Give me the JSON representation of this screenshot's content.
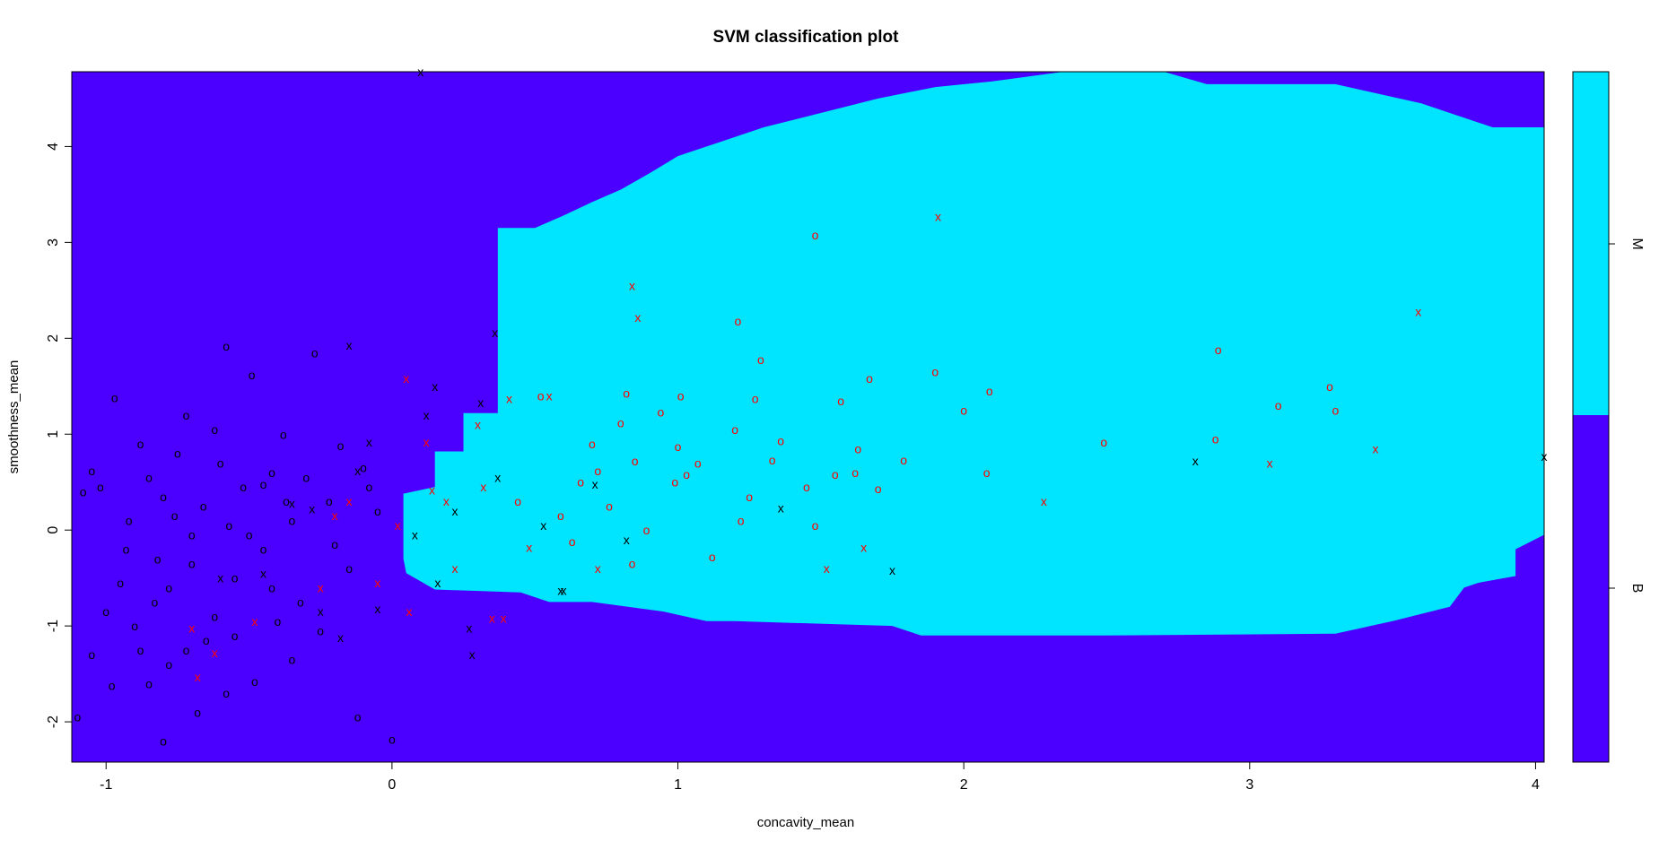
{
  "chart_data": {
    "type": "scatter",
    "title": "SVM classification plot",
    "xlabel": "concavity_mean",
    "ylabel": "smoothness_mean",
    "xlim": [
      -1.12,
      4.03
    ],
    "ylim": [
      -2.42,
      4.78
    ],
    "x_ticks": [
      "-1",
      "0",
      "1",
      "2",
      "3",
      "4"
    ],
    "y_ticks": [
      "-2",
      "-1",
      "0",
      "1",
      "2",
      "3",
      "4"
    ],
    "grid": false,
    "classes": [
      {
        "name": "B",
        "color": "#4b00ff"
      },
      {
        "name": "M",
        "color": "#00e5ff"
      }
    ],
    "legend": {
      "position": "right",
      "type": "color-bar",
      "labels": [
        "M",
        "B"
      ]
    },
    "markers": {
      "data_point": "o",
      "support_vector": "x"
    },
    "point_colors": {
      "B": "#000000",
      "M": "#ff0000"
    },
    "decision_region_M": [
      [
        0.04,
        0.38
      ],
      [
        0.15,
        0.45
      ],
      [
        0.15,
        0.82
      ],
      [
        0.25,
        0.82
      ],
      [
        0.25,
        1.22
      ],
      [
        0.37,
        1.22
      ],
      [
        0.37,
        3.15
      ],
      [
        0.5,
        3.15
      ],
      [
        0.6,
        3.28
      ],
      [
        0.7,
        3.42
      ],
      [
        0.8,
        3.55
      ],
      [
        0.9,
        3.72
      ],
      [
        1.0,
        3.9
      ],
      [
        1.15,
        4.05
      ],
      [
        1.3,
        4.2
      ],
      [
        1.5,
        4.35
      ],
      [
        1.7,
        4.5
      ],
      [
        1.9,
        4.62
      ],
      [
        2.1,
        4.68
      ],
      [
        2.35,
        4.78
      ],
      [
        2.7,
        4.78
      ],
      [
        2.85,
        4.65
      ],
      [
        3.3,
        4.65
      ],
      [
        3.6,
        4.45
      ],
      [
        3.85,
        4.2
      ],
      [
        4.03,
        4.2
      ],
      [
        4.03,
        -0.05
      ],
      [
        3.93,
        -0.2
      ],
      [
        3.93,
        -0.48
      ],
      [
        3.8,
        -0.55
      ],
      [
        3.75,
        -0.6
      ],
      [
        3.7,
        -0.8
      ],
      [
        3.5,
        -0.95
      ],
      [
        3.3,
        -1.08
      ],
      [
        2.5,
        -1.1
      ],
      [
        1.85,
        -1.1
      ],
      [
        1.75,
        -1.0
      ],
      [
        1.2,
        -0.95
      ],
      [
        1.1,
        -0.95
      ],
      [
        0.95,
        -0.85
      ],
      [
        0.7,
        -0.75
      ],
      [
        0.55,
        -0.75
      ],
      [
        0.45,
        -0.65
      ],
      [
        0.15,
        -0.62
      ],
      [
        0.05,
        -0.45
      ],
      [
        0.04,
        -0.3
      ]
    ],
    "points": [
      {
        "x": -1.08,
        "y": 0.4,
        "class": "B",
        "sv": false
      },
      {
        "x": -1.05,
        "y": 0.62,
        "class": "B",
        "sv": false
      },
      {
        "x": -1.02,
        "y": 0.45,
        "class": "B",
        "sv": false
      },
      {
        "x": -0.97,
        "y": 1.38,
        "class": "B",
        "sv": false
      },
      {
        "x": -0.92,
        "y": 0.1,
        "class": "B",
        "sv": false
      },
      {
        "x": -0.88,
        "y": 0.9,
        "class": "B",
        "sv": false
      },
      {
        "x": -0.85,
        "y": 0.55,
        "class": "B",
        "sv": false
      },
      {
        "x": -0.82,
        "y": -0.3,
        "class": "B",
        "sv": false
      },
      {
        "x": -0.8,
        "y": 0.35,
        "class": "B",
        "sv": false
      },
      {
        "x": -0.78,
        "y": -0.6,
        "class": "B",
        "sv": false
      },
      {
        "x": -0.75,
        "y": 0.8,
        "class": "B",
        "sv": false
      },
      {
        "x": -0.72,
        "y": 1.2,
        "class": "B",
        "sv": false
      },
      {
        "x": -0.7,
        "y": -0.05,
        "class": "B",
        "sv": false
      },
      {
        "x": -0.66,
        "y": 0.25,
        "class": "B",
        "sv": false
      },
      {
        "x": -0.62,
        "y": 1.05,
        "class": "B",
        "sv": false
      },
      {
        "x": -0.58,
        "y": 1.92,
        "class": "B",
        "sv": false
      },
      {
        "x": -0.55,
        "y": -0.5,
        "class": "B",
        "sv": false
      },
      {
        "x": -0.52,
        "y": 0.45,
        "class": "B",
        "sv": false
      },
      {
        "x": -0.49,
        "y": 1.62,
        "class": "B",
        "sv": false
      },
      {
        "x": -0.45,
        "y": -0.2,
        "class": "B",
        "sv": false
      },
      {
        "x": -0.42,
        "y": 0.6,
        "class": "B",
        "sv": false
      },
      {
        "x": -0.38,
        "y": 1.0,
        "class": "B",
        "sv": false
      },
      {
        "x": -0.35,
        "y": 0.1,
        "class": "B",
        "sv": false
      },
      {
        "x": -0.3,
        "y": 0.55,
        "class": "B",
        "sv": false
      },
      {
        "x": -0.27,
        "y": 1.85,
        "class": "B",
        "sv": false
      },
      {
        "x": -0.22,
        "y": 0.3,
        "class": "B",
        "sv": false
      },
      {
        "x": -0.18,
        "y": 0.88,
        "class": "B",
        "sv": false
      },
      {
        "x": -0.15,
        "y": -0.4,
        "class": "B",
        "sv": false
      },
      {
        "x": -0.1,
        "y": 0.65,
        "class": "B",
        "sv": false
      },
      {
        "x": -0.05,
        "y": 0.2,
        "class": "B",
        "sv": false
      },
      {
        "x": -0.9,
        "y": -1.0,
        "class": "B",
        "sv": false
      },
      {
        "x": -0.85,
        "y": -1.6,
        "class": "B",
        "sv": false
      },
      {
        "x": -0.8,
        "y": -2.2,
        "class": "B",
        "sv": false
      },
      {
        "x": -0.72,
        "y": -1.25,
        "class": "B",
        "sv": false
      },
      {
        "x": -0.68,
        "y": -1.9,
        "class": "B",
        "sv": false
      },
      {
        "x": -0.62,
        "y": -0.9,
        "class": "B",
        "sv": false
      },
      {
        "x": -0.58,
        "y": -1.7,
        "class": "B",
        "sv": false
      },
      {
        "x": -0.55,
        "y": -1.1,
        "class": "B",
        "sv": false
      },
      {
        "x": -0.48,
        "y": -1.58,
        "class": "B",
        "sv": false
      },
      {
        "x": -0.4,
        "y": -0.95,
        "class": "B",
        "sv": false
      },
      {
        "x": -0.35,
        "y": -1.35,
        "class": "B",
        "sv": false
      },
      {
        "x": -1.0,
        "y": -0.85,
        "class": "B",
        "sv": false
      },
      {
        "x": -0.95,
        "y": -0.55,
        "class": "B",
        "sv": false
      },
      {
        "x": -0.88,
        "y": -1.25,
        "class": "B",
        "sv": false
      },
      {
        "x": -0.76,
        "y": 0.15,
        "class": "B",
        "sv": false
      },
      {
        "x": -0.6,
        "y": 0.7,
        "class": "B",
        "sv": false
      },
      {
        "x": -0.5,
        "y": -0.05,
        "class": "B",
        "sv": false
      },
      {
        "x": -0.45,
        "y": 0.48,
        "class": "B",
        "sv": false
      },
      {
        "x": -0.32,
        "y": -0.75,
        "class": "B",
        "sv": false
      },
      {
        "x": -0.25,
        "y": -1.05,
        "class": "B",
        "sv": false
      },
      {
        "x": -0.12,
        "y": -1.95,
        "class": "B",
        "sv": false
      },
      {
        "x": 0.0,
        "y": -2.18,
        "class": "B",
        "sv": false
      },
      {
        "x": -1.1,
        "y": -1.95,
        "class": "B",
        "sv": false
      },
      {
        "x": -1.05,
        "y": -1.3,
        "class": "B",
        "sv": false
      },
      {
        "x": -0.98,
        "y": -1.62,
        "class": "B",
        "sv": false
      },
      {
        "x": -0.93,
        "y": -0.2,
        "class": "B",
        "sv": false
      },
      {
        "x": -0.83,
        "y": -0.75,
        "class": "B",
        "sv": false
      },
      {
        "x": -0.78,
        "y": -1.4,
        "class": "B",
        "sv": false
      },
      {
        "x": -0.7,
        "y": -0.35,
        "class": "B",
        "sv": false
      },
      {
        "x": -0.65,
        "y": -1.15,
        "class": "B",
        "sv": false
      },
      {
        "x": -0.57,
        "y": 0.05,
        "class": "B",
        "sv": false
      },
      {
        "x": -0.42,
        "y": -0.6,
        "class": "B",
        "sv": false
      },
      {
        "x": -0.37,
        "y": 0.3,
        "class": "B",
        "sv": false
      },
      {
        "x": -0.2,
        "y": -0.15,
        "class": "B",
        "sv": false
      },
      {
        "x": -0.08,
        "y": 0.45,
        "class": "B",
        "sv": false
      },
      {
        "x": -0.15,
        "y": 1.93,
        "class": "B",
        "sv": true
      },
      {
        "x": -0.08,
        "y": 0.92,
        "class": "B",
        "sv": true
      },
      {
        "x": 0.1,
        "y": 4.78,
        "class": "B",
        "sv": true
      },
      {
        "x": 0.15,
        "y": 1.5,
        "class": "B",
        "sv": true
      },
      {
        "x": 0.12,
        "y": 1.2,
        "class": "B",
        "sv": true
      },
      {
        "x": -0.12,
        "y": 0.62,
        "class": "B",
        "sv": true
      },
      {
        "x": -0.28,
        "y": 0.22,
        "class": "B",
        "sv": true
      },
      {
        "x": -0.35,
        "y": 0.28,
        "class": "B",
        "sv": true
      },
      {
        "x": -0.45,
        "y": -0.45,
        "class": "B",
        "sv": true
      },
      {
        "x": -0.6,
        "y": -0.5,
        "class": "B",
        "sv": true
      },
      {
        "x": -0.25,
        "y": -0.85,
        "class": "B",
        "sv": true
      },
      {
        "x": -0.18,
        "y": -1.12,
        "class": "B",
        "sv": true
      },
      {
        "x": -0.05,
        "y": -0.82,
        "class": "B",
        "sv": true
      },
      {
        "x": 0.08,
        "y": -0.05,
        "class": "B",
        "sv": true
      },
      {
        "x": 0.16,
        "y": -0.55,
        "class": "B",
        "sv": true
      },
      {
        "x": 0.22,
        "y": 0.2,
        "class": "B",
        "sv": true
      },
      {
        "x": 0.27,
        "y": -1.02,
        "class": "B",
        "sv": true
      },
      {
        "x": 0.28,
        "y": -1.3,
        "class": "B",
        "sv": true
      },
      {
        "x": 0.31,
        "y": 1.33,
        "class": "B",
        "sv": true
      },
      {
        "x": 0.36,
        "y": 2.06,
        "class": "B",
        "sv": true
      },
      {
        "x": 0.37,
        "y": 0.55,
        "class": "B",
        "sv": true
      },
      {
        "x": 0.53,
        "y": 0.05,
        "class": "B",
        "sv": true
      },
      {
        "x": 0.59,
        "y": -0.63,
        "class": "B",
        "sv": true
      },
      {
        "x": 0.6,
        "y": -0.63,
        "class": "B",
        "sv": true
      },
      {
        "x": 0.71,
        "y": 0.48,
        "class": "B",
        "sv": true
      },
      {
        "x": 0.82,
        "y": -0.1,
        "class": "B",
        "sv": true
      },
      {
        "x": 1.36,
        "y": 0.23,
        "class": "B",
        "sv": true
      },
      {
        "x": 1.75,
        "y": -0.42,
        "class": "B",
        "sv": true
      },
      {
        "x": 2.81,
        "y": 0.72,
        "class": "B",
        "sv": true
      },
      {
        "x": 4.03,
        "y": 0.77,
        "class": "B",
        "sv": true
      },
      {
        "x": 0.52,
        "y": 1.4,
        "class": "M",
        "sv": false
      },
      {
        "x": 0.59,
        "y": 0.15,
        "class": "M",
        "sv": false
      },
      {
        "x": 0.66,
        "y": 0.5,
        "class": "M",
        "sv": false
      },
      {
        "x": 0.72,
        "y": 0.62,
        "class": "M",
        "sv": false
      },
      {
        "x": 0.76,
        "y": 0.25,
        "class": "M",
        "sv": false
      },
      {
        "x": 0.8,
        "y": 1.12,
        "class": "M",
        "sv": false
      },
      {
        "x": 0.82,
        "y": 1.43,
        "class": "M",
        "sv": false
      },
      {
        "x": 0.85,
        "y": 0.72,
        "class": "M",
        "sv": false
      },
      {
        "x": 0.89,
        "y": 0.0,
        "class": "M",
        "sv": false
      },
      {
        "x": 0.94,
        "y": 1.23,
        "class": "M",
        "sv": false
      },
      {
        "x": 0.99,
        "y": 0.5,
        "class": "M",
        "sv": false
      },
      {
        "x": 1.0,
        "y": 0.87,
        "class": "M",
        "sv": false
      },
      {
        "x": 1.03,
        "y": 0.58,
        "class": "M",
        "sv": false
      },
      {
        "x": 1.07,
        "y": 0.7,
        "class": "M",
        "sv": false
      },
      {
        "x": 1.12,
        "y": -0.28,
        "class": "M",
        "sv": false
      },
      {
        "x": 1.21,
        "y": 2.18,
        "class": "M",
        "sv": false
      },
      {
        "x": 1.22,
        "y": 0.1,
        "class": "M",
        "sv": false
      },
      {
        "x": 1.27,
        "y": 1.37,
        "class": "M",
        "sv": false
      },
      {
        "x": 1.29,
        "y": 1.78,
        "class": "M",
        "sv": false
      },
      {
        "x": 1.33,
        "y": 0.73,
        "class": "M",
        "sv": false
      },
      {
        "x": 1.36,
        "y": 0.93,
        "class": "M",
        "sv": false
      },
      {
        "x": 1.45,
        "y": 0.45,
        "class": "M",
        "sv": false
      },
      {
        "x": 1.48,
        "y": 3.08,
        "class": "M",
        "sv": false
      },
      {
        "x": 1.55,
        "y": 0.58,
        "class": "M",
        "sv": false
      },
      {
        "x": 1.57,
        "y": 1.35,
        "class": "M",
        "sv": false
      },
      {
        "x": 1.62,
        "y": 0.6,
        "class": "M",
        "sv": false
      },
      {
        "x": 1.67,
        "y": 1.58,
        "class": "M",
        "sv": false
      },
      {
        "x": 1.7,
        "y": 0.43,
        "class": "M",
        "sv": false
      },
      {
        "x": 1.79,
        "y": 0.73,
        "class": "M",
        "sv": false
      },
      {
        "x": 1.9,
        "y": 1.65,
        "class": "M",
        "sv": false
      },
      {
        "x": 2.0,
        "y": 1.25,
        "class": "M",
        "sv": false
      },
      {
        "x": 2.09,
        "y": 1.45,
        "class": "M",
        "sv": false
      },
      {
        "x": 2.08,
        "y": 0.6,
        "class": "M",
        "sv": false
      },
      {
        "x": 2.49,
        "y": 0.92,
        "class": "M",
        "sv": false
      },
      {
        "x": 2.89,
        "y": 1.88,
        "class": "M",
        "sv": false
      },
      {
        "x": 2.88,
        "y": 0.95,
        "class": "M",
        "sv": false
      },
      {
        "x": 3.1,
        "y": 1.3,
        "class": "M",
        "sv": false
      },
      {
        "x": 3.28,
        "y": 1.5,
        "class": "M",
        "sv": false
      },
      {
        "x": 3.3,
        "y": 1.25,
        "class": "M",
        "sv": false
      },
      {
        "x": 0.44,
        "y": 0.3,
        "class": "M",
        "sv": false
      },
      {
        "x": 0.63,
        "y": -0.12,
        "class": "M",
        "sv": false
      },
      {
        "x": 0.7,
        "y": 0.9,
        "class": "M",
        "sv": false
      },
      {
        "x": 0.84,
        "y": -0.35,
        "class": "M",
        "sv": false
      },
      {
        "x": 1.01,
        "y": 1.4,
        "class": "M",
        "sv": false
      },
      {
        "x": 1.2,
        "y": 1.05,
        "class": "M",
        "sv": false
      },
      {
        "x": 1.25,
        "y": 0.35,
        "class": "M",
        "sv": false
      },
      {
        "x": 1.48,
        "y": 0.05,
        "class": "M",
        "sv": false
      },
      {
        "x": 1.63,
        "y": 0.85,
        "class": "M",
        "sv": false
      },
      {
        "x": 0.05,
        "y": 1.58,
        "class": "M",
        "sv": true
      },
      {
        "x": 0.12,
        "y": 0.92,
        "class": "M",
        "sv": true
      },
      {
        "x": -0.15,
        "y": 0.3,
        "class": "M",
        "sv": true
      },
      {
        "x": -0.2,
        "y": 0.15,
        "class": "M",
        "sv": true
      },
      {
        "x": -0.25,
        "y": -0.6,
        "class": "M",
        "sv": true
      },
      {
        "x": -0.05,
        "y": -0.55,
        "class": "M",
        "sv": true
      },
      {
        "x": -0.48,
        "y": -0.95,
        "class": "M",
        "sv": true
      },
      {
        "x": -0.7,
        "y": -1.02,
        "class": "M",
        "sv": true
      },
      {
        "x": -0.62,
        "y": -1.28,
        "class": "M",
        "sv": true
      },
      {
        "x": -0.68,
        "y": -1.53,
        "class": "M",
        "sv": true
      },
      {
        "x": 0.02,
        "y": 0.05,
        "class": "M",
        "sv": true
      },
      {
        "x": 0.06,
        "y": -0.85,
        "class": "M",
        "sv": true
      },
      {
        "x": 0.14,
        "y": 0.42,
        "class": "M",
        "sv": true
      },
      {
        "x": 0.19,
        "y": 0.3,
        "class": "M",
        "sv": true
      },
      {
        "x": 0.22,
        "y": -0.4,
        "class": "M",
        "sv": true
      },
      {
        "x": 0.3,
        "y": 1.1,
        "class": "M",
        "sv": true
      },
      {
        "x": 0.32,
        "y": 0.45,
        "class": "M",
        "sv": true
      },
      {
        "x": 0.35,
        "y": -0.92,
        "class": "M",
        "sv": true
      },
      {
        "x": 0.39,
        "y": -0.92,
        "class": "M",
        "sv": true
      },
      {
        "x": 0.41,
        "y": 1.37,
        "class": "M",
        "sv": true
      },
      {
        "x": 0.48,
        "y": -0.18,
        "class": "M",
        "sv": true
      },
      {
        "x": 0.55,
        "y": 1.4,
        "class": "M",
        "sv": true
      },
      {
        "x": 0.72,
        "y": -0.4,
        "class": "M",
        "sv": true
      },
      {
        "x": 0.84,
        "y": 2.55,
        "class": "M",
        "sv": true
      },
      {
        "x": 0.86,
        "y": 2.22,
        "class": "M",
        "sv": true
      },
      {
        "x": 1.52,
        "y": -0.4,
        "class": "M",
        "sv": true
      },
      {
        "x": 1.65,
        "y": -0.18,
        "class": "M",
        "sv": true
      },
      {
        "x": 1.91,
        "y": 3.27,
        "class": "M",
        "sv": true
      },
      {
        "x": 2.28,
        "y": 0.3,
        "class": "M",
        "sv": true
      },
      {
        "x": 3.07,
        "y": 0.7,
        "class": "M",
        "sv": true
      },
      {
        "x": 3.44,
        "y": 0.85,
        "class": "M",
        "sv": true
      },
      {
        "x": 3.59,
        "y": 2.28,
        "class": "M",
        "sv": true
      }
    ]
  }
}
